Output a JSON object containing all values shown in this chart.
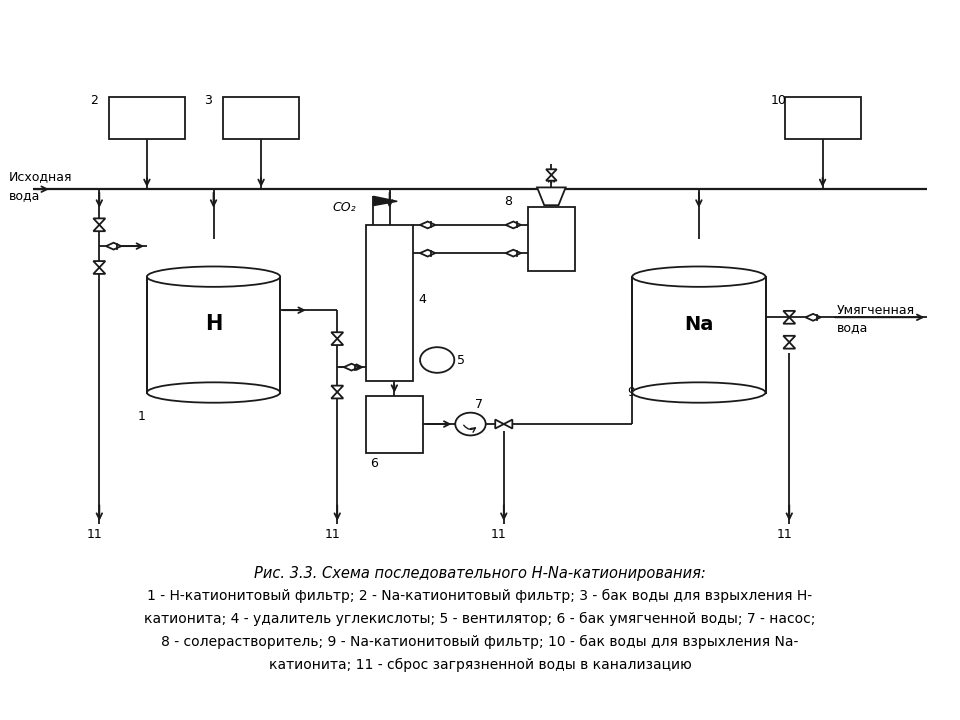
{
  "title": "Рис. 3.3. Схема последовательного Н-Na-катионирования:",
  "caption_line1": "1 - Н-катионитовый фильтр; 2 - Na-катионитовый фильтр; 3 - бак воды для взрыхления Н-",
  "caption_line2": "катионита; 4 - удалитель углекислоты; 5 - вентилятор; 6 - бак умягченной воды; 7 - насос;",
  "caption_line3": "8 - солерастворитель; 9 - Na-катионитовый фильтр; 10 - бак воды для взрыхления Na-",
  "caption_line4": "катионита; 11 - сброс загрязненной воды в канализацию",
  "bg_color": "#ffffff",
  "line_color": "#1a1a1a",
  "font_size": 10.5
}
